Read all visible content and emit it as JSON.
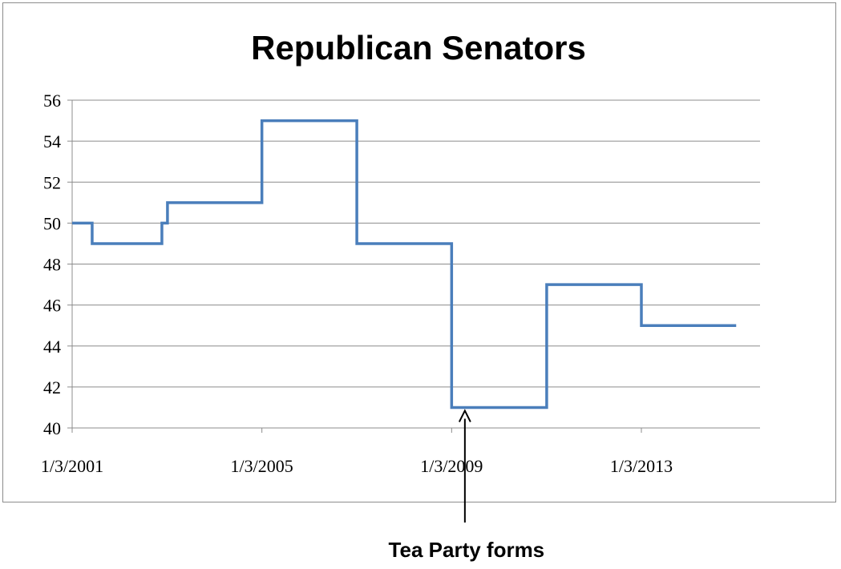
{
  "chart_data": {
    "type": "line",
    "title": "Republican Senators",
    "xlabel": "",
    "ylabel": "",
    "ylim": [
      40,
      56
    ],
    "yticks": [
      "40",
      "42",
      "44",
      "46",
      "48",
      "50",
      "52",
      "54",
      "56"
    ],
    "xticks": [
      {
        "label": "1/3/2001",
        "date": "2001-01-03"
      },
      {
        "label": "1/3/2005",
        "date": "2005-01-03"
      },
      {
        "label": "1/3/2009",
        "date": "2009-01-03"
      },
      {
        "label": "1/3/2013",
        "date": "2013-01-03"
      }
    ],
    "grid": true,
    "legend": "none",
    "series": [
      {
        "color": "#4a7ebb",
        "step": true,
        "points": [
          {
            "x": "2001-01-03",
            "y": 50
          },
          {
            "x": "2001-06-06",
            "y": 49
          },
          {
            "x": "2002-11-25",
            "y": 50
          },
          {
            "x": "2003-01-07",
            "y": 51
          },
          {
            "x": "2005-01-03",
            "y": 55
          },
          {
            "x": "2007-01-04",
            "y": 49
          },
          {
            "x": "2009-01-03",
            "y": 41
          },
          {
            "x": "2011-01-05",
            "y": 47
          },
          {
            "x": "2013-01-03",
            "y": 45
          },
          {
            "x": "2015-01-03",
            "y": 45
          }
        ]
      }
    ],
    "annotations": [
      {
        "text": "Tea Party forms",
        "x": "2009-04-15",
        "arrow_to_y": 41
      }
    ]
  }
}
